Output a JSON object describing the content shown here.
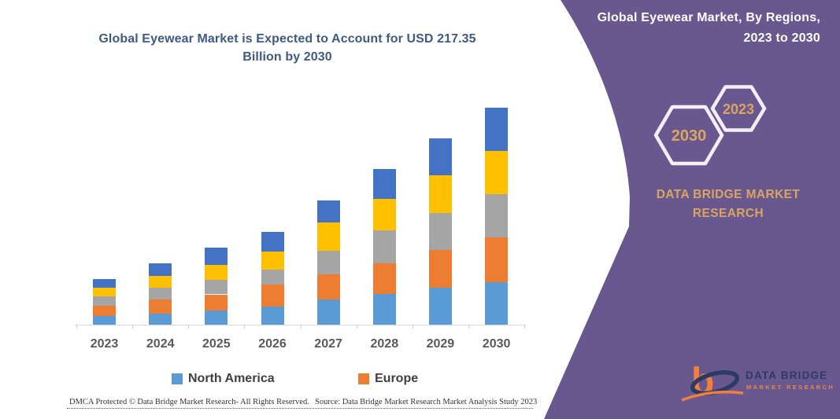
{
  "chart_panel": {
    "title": "Global Eyewear Market is Expected to Account for USD 217.35 Billion by 2030",
    "footer_left": "DMCA Protected © Data Bridge Market Research-  All Rights Reserved.",
    "footer_right": "Source: Data Bridge Market Research  Market Analysis Study 2023"
  },
  "chart_data": {
    "type": "bar",
    "stacked": true,
    "title": "Global Eyewear Market is Expected to Account for USD 217.35 Billion by 2030",
    "unit": "USD Billion",
    "categories": [
      "2023",
      "2024",
      "2025",
      "2026",
      "2027",
      "2028",
      "2029",
      "2030"
    ],
    "series": [
      {
        "key": "north-america",
        "name": "North America",
        "color": "#5B9BD5",
        "legend_visible": true,
        "values": [
          8.4,
          11.0,
          14.2,
          18.1,
          25.2,
          30.4,
          37.0,
          42.3
        ]
      },
      {
        "key": "europe",
        "name": "Europe",
        "color": "#ED7D31",
        "legend_visible": true,
        "values": [
          10.5,
          13.9,
          16.0,
          21.8,
          25.4,
          30.7,
          37.5,
          44.8
        ]
      },
      {
        "key": "unlabeled-gray",
        "name": "",
        "color": "#A5A5A5",
        "legend_visible": false,
        "values": [
          9.2,
          12.0,
          14.9,
          14.9,
          23.6,
          33.0,
          37.2,
          43.7
        ]
      },
      {
        "key": "unlabeled-yellow",
        "name": "",
        "color": "#FFC000",
        "legend_visible": false,
        "values": [
          9.2,
          12.0,
          14.9,
          18.6,
          28.3,
          32.0,
          37.5,
          43.3
        ]
      },
      {
        "key": "unlabeled-darkblue",
        "name": "",
        "color": "#4472C4",
        "legend_visible": false,
        "values": [
          8.7,
          12.4,
          17.1,
          19.7,
          22.0,
          29.3,
          37.5,
          43.25
        ]
      }
    ],
    "totals": [
      46.0,
      61.3,
      77.1,
      93.1,
      124.5,
      155.4,
      186.7,
      217.35
    ],
    "legend_position": "bottom",
    "y_axis_visible": false,
    "x_axis_line_color": "#D9D9D9",
    "gridlines": false
  },
  "legend": {
    "items": [
      {
        "label": "North America",
        "color": "#5B9BD5"
      },
      {
        "label": "Europe",
        "color": "#ED7D31"
      }
    ]
  },
  "side_panel": {
    "background_color": "#695890",
    "heading": "Global Eyewear Market, By Regions, 2023 to 2030",
    "hexagon_back": {
      "label": "2030"
    },
    "hexagon_front": {
      "label": "2023"
    },
    "brand_text": "DATA BRIDGE MARKET RESEARCH",
    "logo": {
      "title": "DATA BRIDGE",
      "subtitle": "MARKET RESEARCH"
    },
    "accent_text_color": "#D9A55F"
  },
  "colors": {
    "chart_title_text": "#3E5A82",
    "axis_labels": "#595959",
    "legend_text": "#3F3F3F",
    "logo_orange": "#F07F3C",
    "logo_navy": "#2B3A66"
  }
}
